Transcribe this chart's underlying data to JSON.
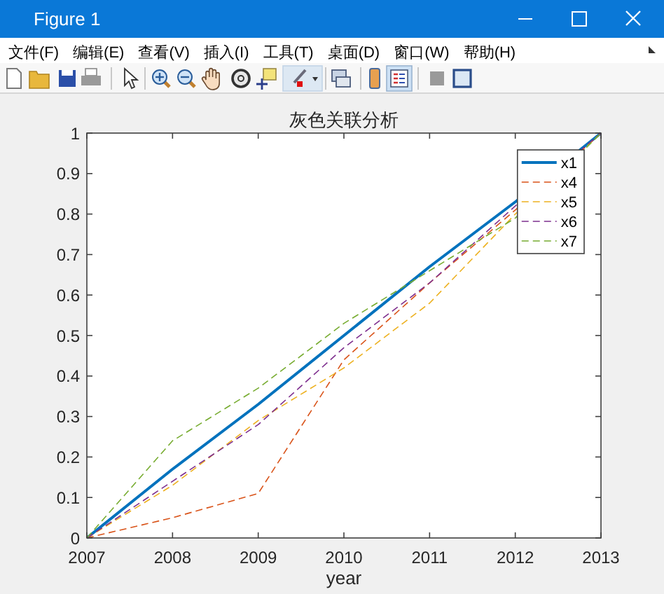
{
  "chart_data": {
    "type": "line",
    "title": "灰色关联分析",
    "xlabel": "year",
    "x": [
      2007,
      2008,
      2009,
      2010,
      2011,
      2012,
      2013
    ],
    "xlim": [
      2007,
      2013
    ],
    "xticks": [
      2007,
      2008,
      2009,
      2010,
      2011,
      2012,
      2013
    ],
    "ylim": [
      0,
      1
    ],
    "yticks": [
      0,
      0.1,
      0.2,
      0.3,
      0.4,
      0.5,
      0.6,
      0.7,
      0.8,
      0.9,
      1
    ],
    "grid": false,
    "legend": "top right",
    "series": [
      {
        "name": "x1",
        "color": "#0072bd",
        "line_style": "solid",
        "values": [
          0,
          0.17,
          0.33,
          0.5,
          0.67,
          0.83,
          1
        ]
      },
      {
        "name": "x4",
        "color": "#d95319",
        "line_style": "dashed",
        "values": [
          0,
          0.05,
          0.11,
          0.44,
          0.63,
          0.81,
          1
        ]
      },
      {
        "name": "x5",
        "color": "#edb120",
        "line_style": "dashed",
        "values": [
          0,
          0.13,
          0.29,
          0.42,
          0.58,
          0.8,
          1
        ]
      },
      {
        "name": "x6",
        "color": "#7e2f8e",
        "line_style": "dashed",
        "values": [
          0,
          0.14,
          0.28,
          0.47,
          0.63,
          0.82,
          1
        ]
      },
      {
        "name": "x7",
        "color": "#77ac30",
        "line_style": "dashed",
        "values": [
          0,
          0.24,
          0.37,
          0.53,
          0.66,
          0.79,
          1
        ]
      }
    ],
    "annotations": [
      "Figure 1",
      "文件(F)",
      "编辑(E)",
      "查看(V)",
      "插入(I)",
      "工具(T)",
      "桌面(D)",
      "窗口(W)",
      "帮助(H)"
    ]
  }
}
